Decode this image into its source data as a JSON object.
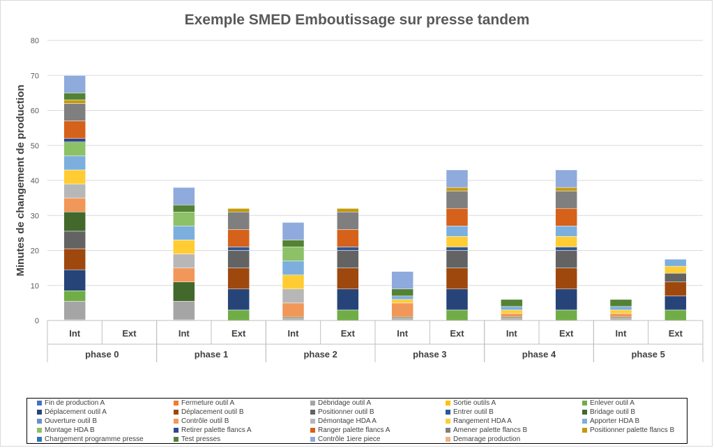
{
  "chart_data": {
    "type": "bar",
    "stacked": true,
    "title": "Exemple SMED Emboutissage sur presse tandem",
    "ylabel": "Minutes  de changement de production",
    "xlabel": "",
    "ylim": [
      0,
      80
    ],
    "yticks": [
      0,
      10,
      20,
      30,
      40,
      50,
      60,
      70,
      80
    ],
    "grid": true,
    "legend_position": "bottom",
    "groups": [
      "phase 0",
      "phase 1",
      "phase 2",
      "phase 3",
      "phase 4",
      "phase 5"
    ],
    "subcategories": [
      "Int",
      "Ext"
    ],
    "series": [
      {
        "name": "Fin de production A",
        "color": "#4472C4",
        "values": [
          [
            0.2,
            0
          ],
          [
            0.2,
            0
          ],
          [
            0.2,
            0
          ],
          [
            0.2,
            0
          ],
          [
            0.2,
            0
          ],
          [
            0.2,
            0
          ]
        ]
      },
      {
        "name": "Fermeture outil A",
        "color": "#ED7D31",
        "values": [
          [
            0,
            0
          ],
          [
            0,
            0
          ],
          [
            0,
            0
          ],
          [
            0,
            0
          ],
          [
            0,
            0
          ],
          [
            0,
            0
          ]
        ]
      },
      {
        "name": "Débridage outil A",
        "color": "#A5A5A5",
        "values": [
          [
            5.3,
            0
          ],
          [
            5.3,
            0
          ],
          [
            0.5,
            0
          ],
          [
            0.5,
            0
          ],
          [
            0.5,
            0
          ],
          [
            0.5,
            0
          ]
        ]
      },
      {
        "name": "Sortie outils A",
        "color": "#FFC000",
        "values": [
          [
            0,
            0
          ],
          [
            0,
            0
          ],
          [
            0,
            0
          ],
          [
            0,
            0
          ],
          [
            0,
            0
          ],
          [
            0,
            0
          ]
        ]
      },
      {
        "name": "Enlever outil A",
        "color": "#70AD47",
        "values": [
          [
            3,
            0
          ],
          [
            0,
            3
          ],
          [
            0,
            3
          ],
          [
            0,
            3
          ],
          [
            0,
            3
          ],
          [
            0,
            3
          ]
        ]
      },
      {
        "name": "Déplacement outil A",
        "color": "#264478",
        "values": [
          [
            6,
            0
          ],
          [
            0,
            6
          ],
          [
            0,
            6
          ],
          [
            0,
            6
          ],
          [
            0,
            6
          ],
          [
            0,
            4
          ]
        ]
      },
      {
        "name": "Déplacement outil B",
        "color": "#9E480E",
        "values": [
          [
            6,
            0
          ],
          [
            0,
            6
          ],
          [
            0,
            6
          ],
          [
            0,
            6
          ],
          [
            0,
            6
          ],
          [
            0,
            4
          ]
        ]
      },
      {
        "name": "Positionner outil B",
        "color": "#636363",
        "values": [
          [
            5,
            0
          ],
          [
            0,
            5
          ],
          [
            0,
            5
          ],
          [
            0,
            5
          ],
          [
            0,
            5
          ],
          [
            0,
            2.5
          ]
        ]
      },
      {
        "name": "Entrer outil B",
        "color": "#2F5597",
        "values": [
          [
            0,
            0
          ],
          [
            0,
            1
          ],
          [
            0,
            1
          ],
          [
            0,
            1
          ],
          [
            0,
            1
          ],
          [
            0,
            0
          ]
        ]
      },
      {
        "name": "Bridage outil B",
        "color": "#43682B",
        "values": [
          [
            5.5,
            0
          ],
          [
            5.5,
            0
          ],
          [
            0.3,
            0
          ],
          [
            0.3,
            0
          ],
          [
            0.3,
            0
          ],
          [
            0.3,
            0
          ]
        ]
      },
      {
        "name": "Ouverture outil B",
        "color": "#698ED0",
        "values": [
          [
            0,
            0
          ],
          [
            0,
            0
          ],
          [
            0,
            0
          ],
          [
            0,
            0
          ],
          [
            0,
            0
          ],
          [
            0,
            0
          ]
        ]
      },
      {
        "name": "Contrôle outil B",
        "color": "#F1975A",
        "values": [
          [
            4,
            0
          ],
          [
            4,
            0
          ],
          [
            4,
            0
          ],
          [
            4,
            0
          ],
          [
            1,
            0
          ],
          [
            1,
            0
          ]
        ]
      },
      {
        "name": "Démontage HDA A",
        "color": "#B7B7B7",
        "values": [
          [
            4,
            0
          ],
          [
            4,
            0
          ],
          [
            4,
            0
          ],
          [
            0,
            0
          ],
          [
            0,
            0
          ],
          [
            0,
            0
          ]
        ]
      },
      {
        "name": "Rangement HDA A",
        "color": "#FFCD33",
        "values": [
          [
            4,
            0
          ],
          [
            4,
            0
          ],
          [
            4,
            0
          ],
          [
            1,
            3
          ],
          [
            1,
            3
          ],
          [
            1,
            2
          ]
        ]
      },
      {
        "name": "Apporter HDA B",
        "color": "#7CAFDD",
        "values": [
          [
            4,
            0
          ],
          [
            4,
            0
          ],
          [
            4,
            0
          ],
          [
            1,
            3
          ],
          [
            1,
            3
          ],
          [
            1,
            2
          ]
        ]
      },
      {
        "name": "Montage HDA B",
        "color": "#8CC168",
        "values": [
          [
            4,
            0
          ],
          [
            4,
            0
          ],
          [
            4,
            0
          ],
          [
            0,
            0
          ],
          [
            0,
            0
          ],
          [
            0,
            0
          ]
        ]
      },
      {
        "name": "Retirer palette flancs A",
        "color": "#2E4A8C",
        "values": [
          [
            1,
            0
          ],
          [
            0,
            0
          ],
          [
            0,
            0
          ],
          [
            0,
            0
          ],
          [
            0,
            0
          ],
          [
            0,
            0
          ]
        ]
      },
      {
        "name": "Ranger palette flancs A",
        "color": "#D5611A",
        "values": [
          [
            5,
            0
          ],
          [
            0,
            5
          ],
          [
            0,
            5
          ],
          [
            0,
            5
          ],
          [
            0,
            5
          ],
          [
            0,
            0
          ]
        ]
      },
      {
        "name": "Amener palette flancs B",
        "color": "#7F7F7F",
        "values": [
          [
            5,
            0
          ],
          [
            0,
            5
          ],
          [
            0,
            5
          ],
          [
            0,
            5
          ],
          [
            0,
            5
          ],
          [
            0,
            0
          ]
        ]
      },
      {
        "name": "Positionner palette flancs B",
        "color": "#C49A0C",
        "values": [
          [
            1,
            0
          ],
          [
            0,
            1
          ],
          [
            0,
            1
          ],
          [
            0,
            1
          ],
          [
            0,
            1
          ],
          [
            0,
            0
          ]
        ]
      },
      {
        "name": "Chargement programme presse",
        "color": "#2E75B6",
        "values": [
          [
            0,
            0
          ],
          [
            0,
            0
          ],
          [
            0,
            0
          ],
          [
            0,
            0
          ],
          [
            0,
            0
          ],
          [
            0,
            0
          ]
        ]
      },
      {
        "name": "Test presses",
        "color": "#548235",
        "values": [
          [
            2,
            0
          ],
          [
            2,
            0
          ],
          [
            2,
            0
          ],
          [
            2,
            0
          ],
          [
            2,
            0
          ],
          [
            2,
            0
          ]
        ]
      },
      {
        "name": "Contrôle 1iere piece",
        "color": "#8FAADC",
        "values": [
          [
            5,
            0
          ],
          [
            5,
            0
          ],
          [
            5,
            0
          ],
          [
            5,
            5
          ],
          [
            0,
            5
          ],
          [
            0,
            0
          ]
        ]
      },
      {
        "name": "Demarage production",
        "color": "#F4B183",
        "values": [
          [
            0,
            0
          ],
          [
            0,
            0
          ],
          [
            0,
            0
          ],
          [
            0,
            0
          ],
          [
            0,
            0
          ],
          [
            0,
            0
          ]
        ]
      }
    ]
  }
}
